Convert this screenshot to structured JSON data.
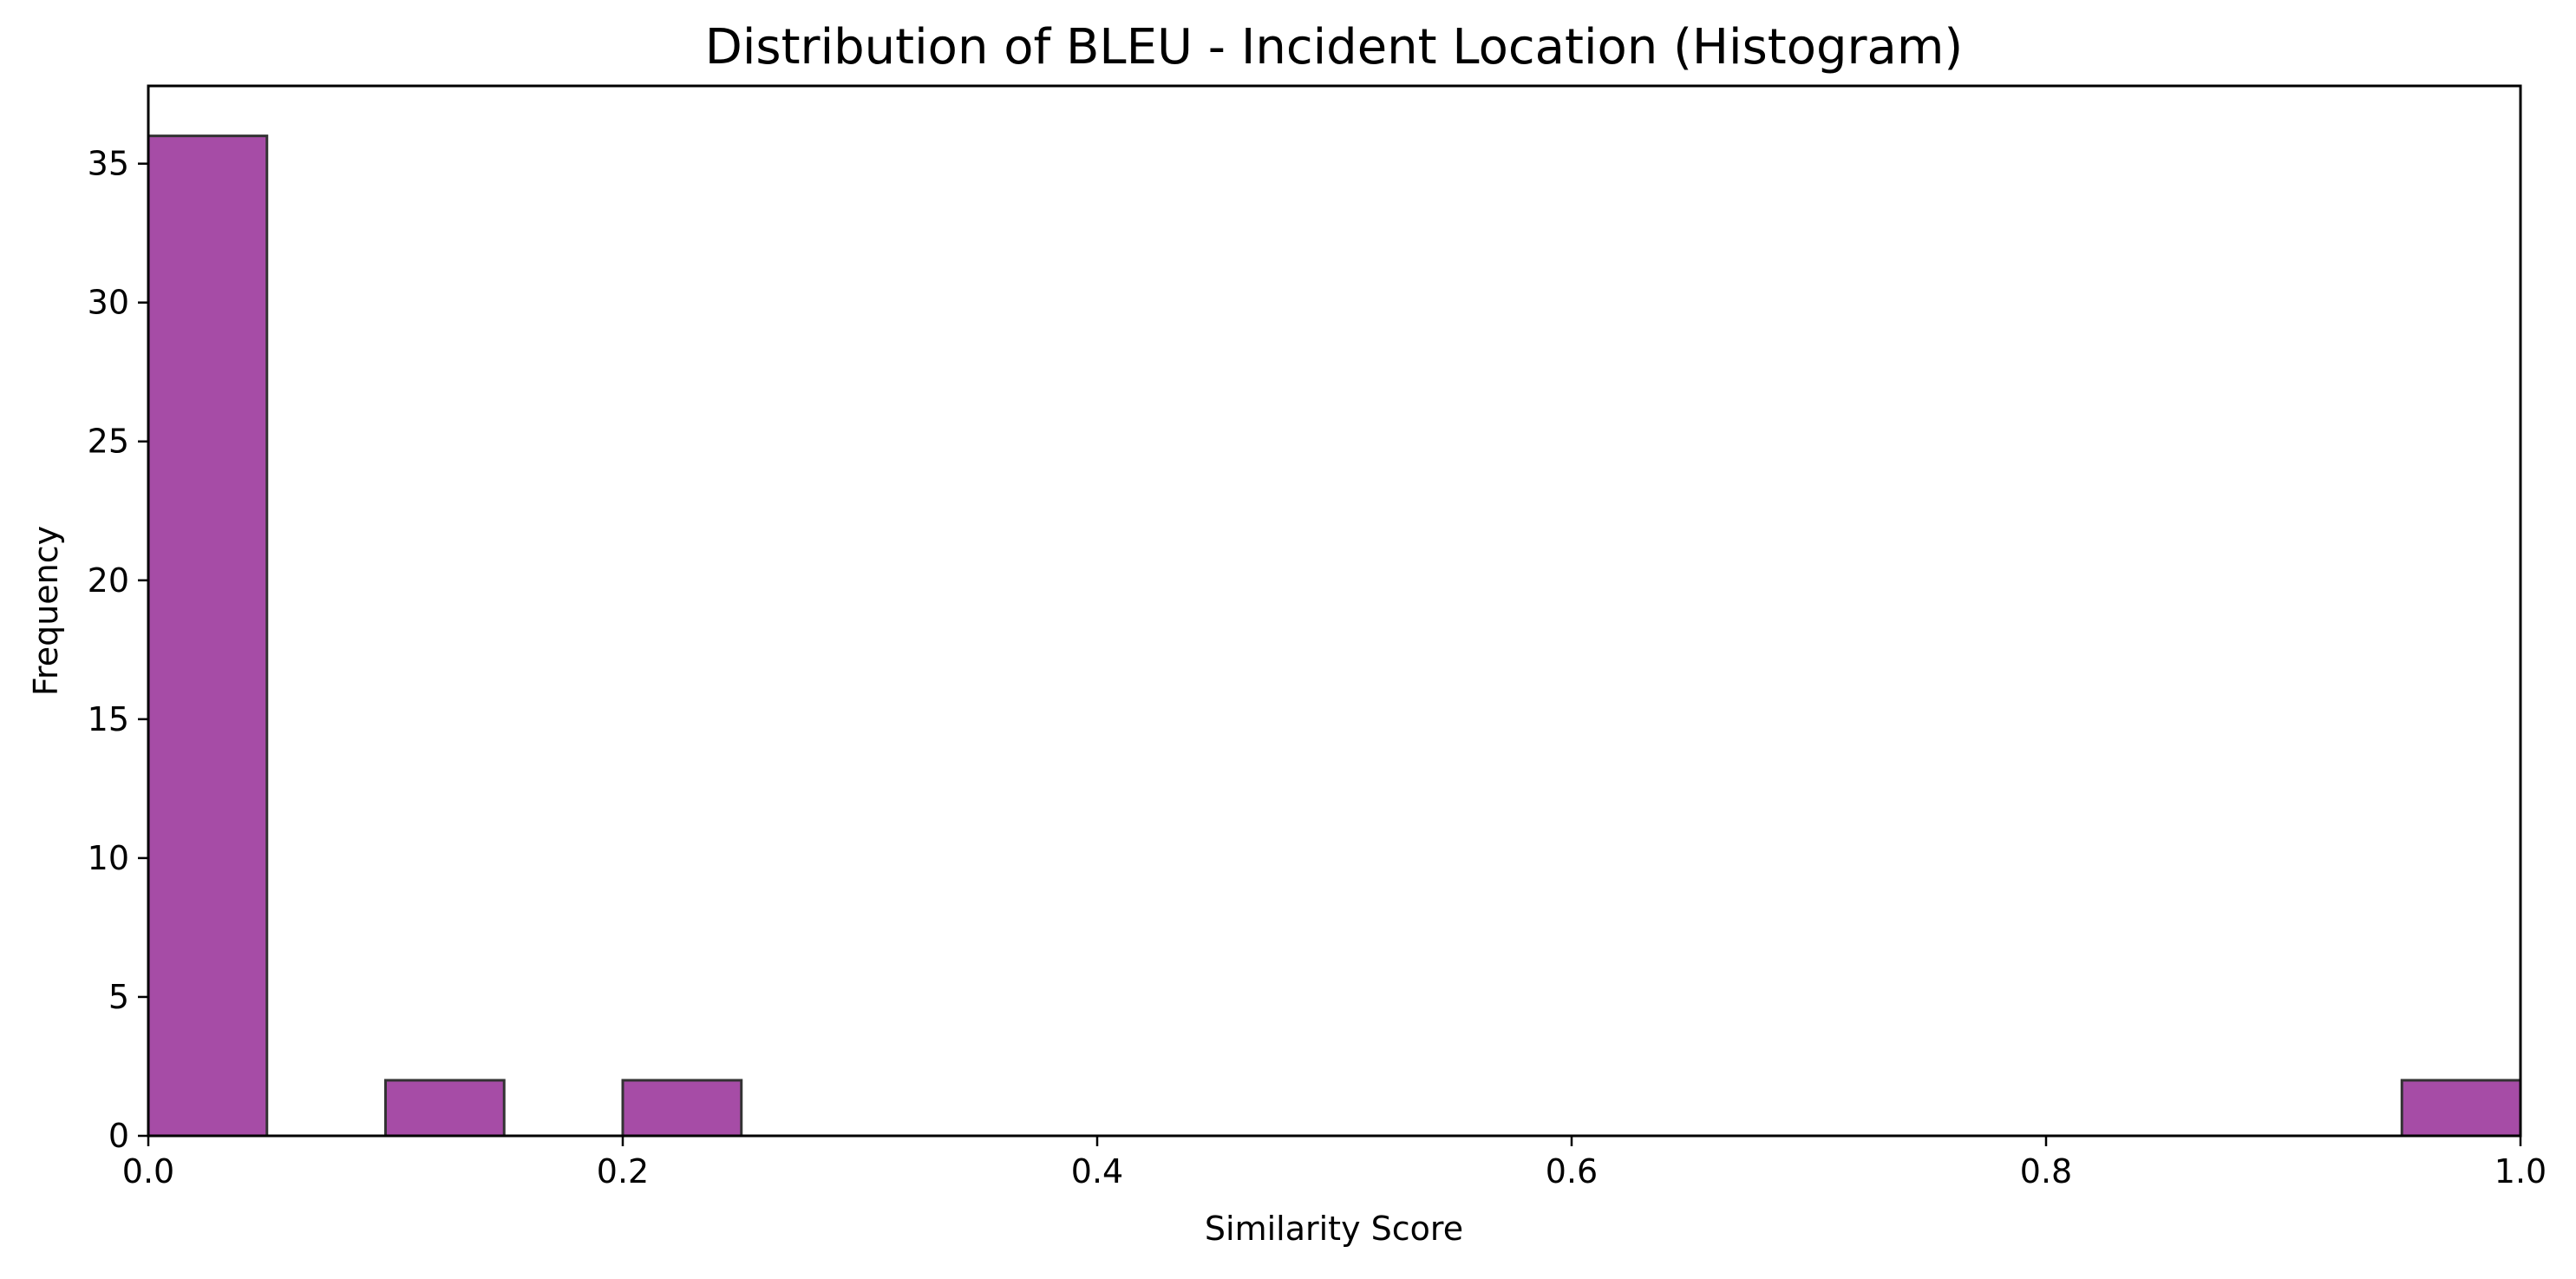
{
  "chart_data": {
    "type": "bar",
    "title": "Distribution of BLEU - Incident Location (Histogram)",
    "xlabel": "Similarity Score",
    "ylabel": "Frequency",
    "xlim": [
      0.0,
      1.0
    ],
    "ylim": [
      0,
      37.8
    ],
    "grid": false,
    "bar_color": "#a64ca6",
    "edge_color": "#333333",
    "bins": [
      {
        "x0": 0.0,
        "x1": 0.05,
        "count": 36
      },
      {
        "x0": 0.05,
        "x1": 0.1,
        "count": 0
      },
      {
        "x0": 0.1,
        "x1": 0.15,
        "count": 2
      },
      {
        "x0": 0.15,
        "x1": 0.2,
        "count": 0
      },
      {
        "x0": 0.2,
        "x1": 0.25,
        "count": 2
      },
      {
        "x0": 0.25,
        "x1": 0.3,
        "count": 0
      },
      {
        "x0": 0.3,
        "x1": 0.35,
        "count": 0
      },
      {
        "x0": 0.35,
        "x1": 0.4,
        "count": 0
      },
      {
        "x0": 0.4,
        "x1": 0.45,
        "count": 0
      },
      {
        "x0": 0.45,
        "x1": 0.5,
        "count": 0
      },
      {
        "x0": 0.5,
        "x1": 0.55,
        "count": 0
      },
      {
        "x0": 0.55,
        "x1": 0.6,
        "count": 0
      },
      {
        "x0": 0.6,
        "x1": 0.65,
        "count": 0
      },
      {
        "x0": 0.65,
        "x1": 0.7,
        "count": 0
      },
      {
        "x0": 0.7,
        "x1": 0.75,
        "count": 0
      },
      {
        "x0": 0.75,
        "x1": 0.8,
        "count": 0
      },
      {
        "x0": 0.8,
        "x1": 0.85,
        "count": 0
      },
      {
        "x0": 0.85,
        "x1": 0.9,
        "count": 0
      },
      {
        "x0": 0.9,
        "x1": 0.95,
        "count": 0
      },
      {
        "x0": 0.95,
        "x1": 1.0,
        "count": 2
      }
    ],
    "x_ticks": [
      {
        "value": 0.0,
        "label": "0.0"
      },
      {
        "value": 0.2,
        "label": "0.2"
      },
      {
        "value": 0.4,
        "label": "0.4"
      },
      {
        "value": 0.6,
        "label": "0.6"
      },
      {
        "value": 0.8,
        "label": "0.8"
      },
      {
        "value": 1.0,
        "label": "1.0"
      }
    ],
    "y_ticks": [
      {
        "value": 0,
        "label": "0"
      },
      {
        "value": 5,
        "label": "5"
      },
      {
        "value": 10,
        "label": "10"
      },
      {
        "value": 15,
        "label": "15"
      },
      {
        "value": 20,
        "label": "20"
      },
      {
        "value": 25,
        "label": "25"
      },
      {
        "value": 30,
        "label": "30"
      },
      {
        "value": 35,
        "label": "35"
      }
    ]
  }
}
